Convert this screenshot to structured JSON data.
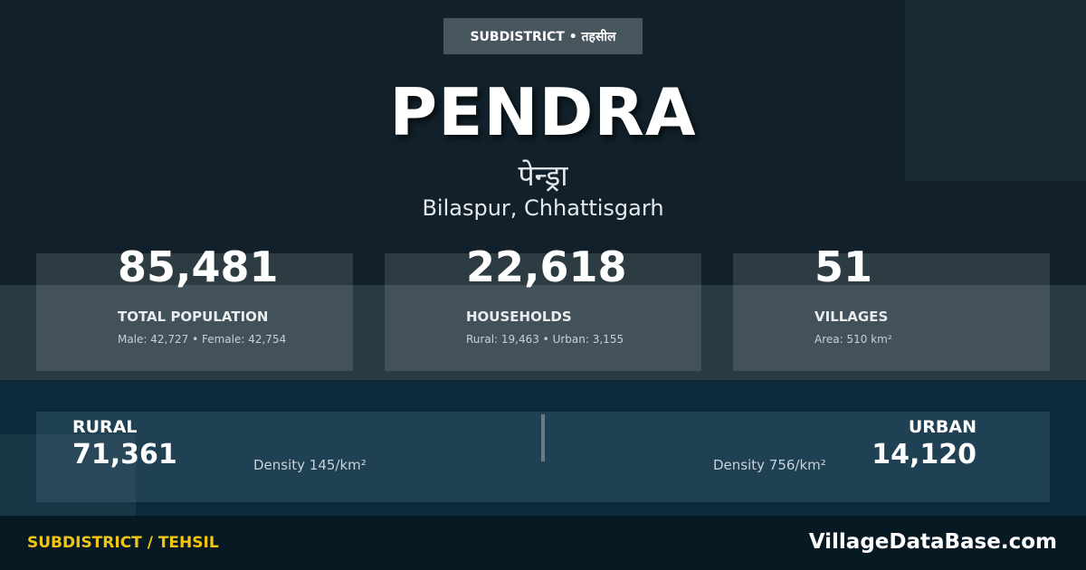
{
  "badge": "SUBDISTRICT • तहसील",
  "title": "PENDRA",
  "title_hindi": "पेन्ड्रा",
  "location": "Bilaspur, Chhattisgarh",
  "stats": [
    {
      "value": "85,481",
      "label": "TOTAL POPULATION",
      "sub": "Male: 42,727 • Female: 42,754"
    },
    {
      "value": "22,618",
      "label": "HOUSEHOLDS",
      "sub": "Rural: 19,463 • Urban: 3,155"
    },
    {
      "value": "51",
      "label": "VILLAGES",
      "sub": "Area: 510 km²"
    }
  ],
  "rural": {
    "label": "RURAL",
    "value": "71,361",
    "density": "Density 145/km²"
  },
  "urban": {
    "label": "URBAN",
    "value": "14,120",
    "density": "Density 756/km²"
  },
  "footer": {
    "category": "SUBDISTRICT / TEHSIL",
    "site": "VillageDataBase.com"
  },
  "colors": {
    "accent": "#f2c511",
    "background": "#11202a"
  }
}
